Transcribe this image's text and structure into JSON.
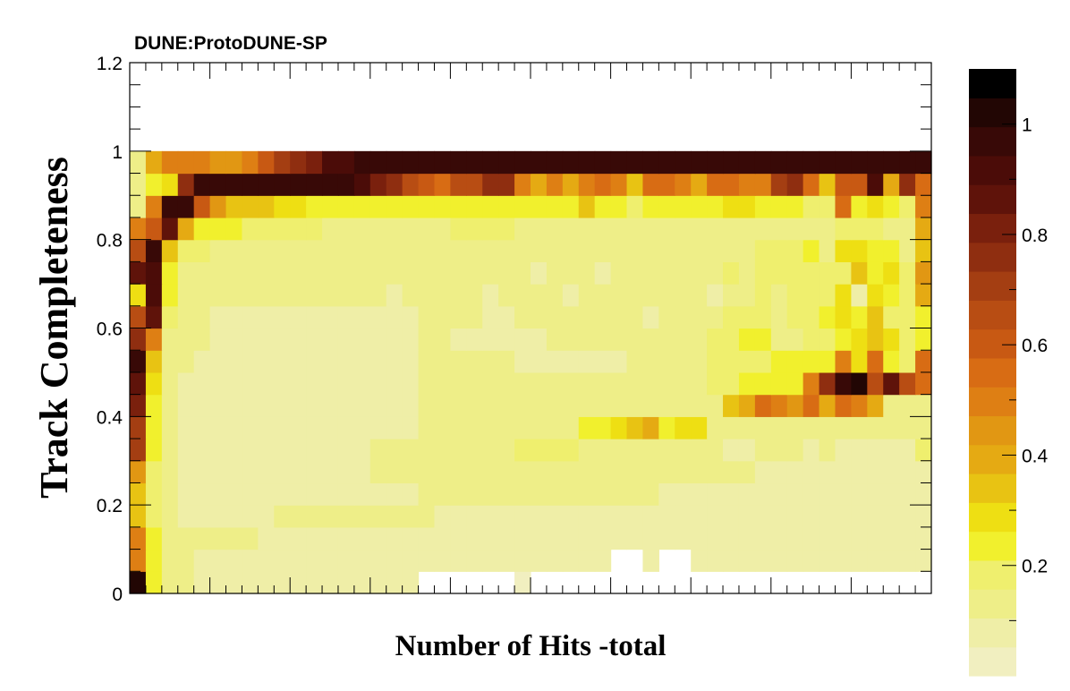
{
  "chart_data": {
    "type": "heatmap",
    "title": "DUNE:ProtoDUNE-SP",
    "xlabel": "Number of Hits -total",
    "ylabel": "Track Completeness",
    "xlim": [
      0,
      50
    ],
    "ylim": [
      0,
      1.2
    ],
    "y_ticks": [
      "0",
      "0.2",
      "0.4",
      "0.6",
      "0.8",
      "1",
      "1.2"
    ],
    "x_tick_labels_visible": false,
    "colorbar": {
      "range": [
        0,
        1.1
      ],
      "tick_labels": [
        "0.2",
        "0.4",
        "0.6",
        "0.8",
        "1"
      ],
      "levels": 20
    },
    "grid": false,
    "bins": {
      "nx": 50,
      "ny": 22,
      "y_bin_width": 0.05
    },
    "description_note": "",
    "z_rows": [
      [
        1.05,
        0.27,
        0.16,
        0.12,
        0.08,
        0.08,
        0.08,
        0.08,
        0.08,
        0.08,
        0.08,
        0.08,
        0.08,
        0.08,
        0.08,
        0.08,
        0.08,
        0.1,
        0,
        0,
        0,
        0,
        0,
        0,
        0.02,
        0,
        0,
        0,
        0,
        0,
        0,
        0,
        0,
        0,
        0,
        0,
        0,
        0,
        0,
        0,
        0,
        0,
        0,
        0,
        0,
        0,
        0,
        0,
        0,
        0
      ],
      [
        0.5,
        0.23,
        0.16,
        0.12,
        0.08,
        0.08,
        0.08,
        0.08,
        0.08,
        0.08,
        0.08,
        0.08,
        0.08,
        0.08,
        0.08,
        0.08,
        0.08,
        0.08,
        0.08,
        0.08,
        0.08,
        0.08,
        0.08,
        0.08,
        0.08,
        0.08,
        0.08,
        0.08,
        0.08,
        0.08,
        0,
        0,
        0.08,
        0,
        0,
        0.08,
        0.08,
        0.08,
        0.08,
        0.08,
        0.08,
        0.08,
        0.08,
        0.08,
        0.08,
        0.08,
        0.08,
        0.08,
        0.08,
        0.08
      ],
      [
        0.53,
        0.22,
        0.14,
        0.12,
        0.12,
        0.12,
        0.12,
        0.12,
        0.08,
        0.08,
        0.08,
        0.08,
        0.08,
        0.08,
        0.08,
        0.08,
        0.08,
        0.08,
        0.08,
        0.08,
        0.08,
        0.08,
        0.08,
        0.08,
        0.08,
        0.08,
        0.08,
        0.08,
        0.08,
        0.08,
        0.08,
        0.08,
        0.08,
        0.08,
        0.08,
        0.08,
        0.08,
        0.08,
        0.08,
        0.08,
        0.08,
        0.08,
        0.08,
        0.08,
        0.08,
        0.08,
        0.08,
        0.08,
        0.08,
        0.08
      ],
      [
        0.36,
        0.2,
        0.14,
        0.08,
        0.08,
        0.08,
        0.08,
        0.08,
        0.08,
        0.12,
        0.12,
        0.12,
        0.12,
        0.12,
        0.12,
        0.12,
        0.12,
        0.12,
        0.12,
        0.08,
        0.08,
        0.08,
        0.08,
        0.08,
        0.08,
        0.08,
        0.08,
        0.08,
        0.08,
        0.08,
        0.08,
        0.08,
        0.08,
        0.08,
        0.08,
        0.08,
        0.08,
        0.08,
        0.08,
        0.08,
        0.08,
        0.08,
        0.08,
        0.08,
        0.08,
        0.08,
        0.08,
        0.08,
        0.08,
        0.08
      ],
      [
        0.38,
        0.21,
        0.14,
        0.08,
        0.08,
        0.08,
        0.08,
        0.08,
        0.08,
        0.08,
        0.08,
        0.08,
        0.08,
        0.08,
        0.08,
        0.08,
        0.08,
        0.08,
        0.12,
        0.12,
        0.12,
        0.12,
        0.12,
        0.12,
        0.12,
        0.12,
        0.12,
        0.12,
        0.12,
        0.12,
        0.12,
        0.12,
        0.12,
        0.08,
        0.08,
        0.08,
        0.08,
        0.08,
        0.08,
        0.08,
        0.08,
        0.08,
        0.08,
        0.08,
        0.08,
        0.08,
        0.08,
        0.08,
        0.08,
        0.08
      ],
      [
        0.46,
        0.2,
        0.12,
        0.08,
        0.08,
        0.08,
        0.08,
        0.08,
        0.08,
        0.08,
        0.08,
        0.08,
        0.08,
        0.08,
        0.08,
        0.12,
        0.12,
        0.12,
        0.12,
        0.12,
        0.12,
        0.12,
        0.12,
        0.12,
        0.12,
        0.12,
        0.12,
        0.12,
        0.12,
        0.12,
        0.12,
        0.12,
        0.12,
        0.12,
        0.12,
        0.12,
        0.12,
        0.12,
        0.12,
        0.08,
        0.08,
        0.08,
        0.08,
        0.08,
        0.08,
        0.08,
        0.08,
        0.08,
        0.08,
        0.08
      ],
      [
        0.74,
        0.22,
        0.12,
        0.08,
        0.08,
        0.08,
        0.08,
        0.08,
        0.08,
        0.08,
        0.08,
        0.08,
        0.08,
        0.08,
        0.08,
        0.12,
        0.12,
        0.12,
        0.12,
        0.12,
        0.12,
        0.12,
        0.12,
        0.15,
        0.18,
        0.18,
        0.18,
        0.18,
        0.12,
        0.14,
        0.14,
        0.12,
        0.12,
        0.14,
        0.16,
        0.14,
        0.12,
        0.08,
        0.08,
        0.12,
        0.12,
        0.12,
        0.08,
        0.12,
        0.08,
        0.08,
        0.08,
        0.08,
        0.08,
        0.2
      ],
      [
        0.72,
        0.24,
        0.14,
        0.08,
        0.08,
        0.08,
        0.08,
        0.08,
        0.08,
        0.08,
        0.08,
        0.08,
        0.08,
        0.08,
        0.08,
        0.08,
        0.08,
        0.08,
        0.14,
        0.14,
        0.14,
        0.14,
        0.14,
        0.14,
        0.14,
        0.14,
        0.14,
        0.14,
        0.22,
        0.26,
        0.32,
        0.38,
        0.4,
        0.22,
        0.28,
        0.28,
        0.14,
        0.14,
        0.14,
        0.14,
        0.14,
        0.16,
        0.14,
        0.14,
        0.16,
        0.14,
        0.14,
        0.14,
        0.14,
        0.14
      ],
      [
        0.85,
        0.26,
        0.16,
        0.08,
        0.08,
        0.08,
        0.08,
        0.08,
        0.08,
        0.08,
        0.08,
        0.08,
        0.08,
        0.08,
        0.08,
        0.08,
        0.08,
        0.08,
        0.12,
        0.12,
        0.12,
        0.12,
        0.12,
        0.12,
        0.12,
        0.12,
        0.12,
        0.12,
        0.12,
        0.12,
        0.12,
        0.12,
        0.12,
        0.12,
        0.12,
        0.12,
        0.16,
        0.35,
        0.4,
        0.6,
        0.5,
        0.45,
        0.55,
        0.4,
        0.6,
        0.5,
        0.4,
        0.16,
        0.14,
        0.16
      ],
      [
        0.92,
        0.28,
        0.16,
        0.08,
        0.08,
        0.08,
        0.08,
        0.08,
        0.08,
        0.08,
        0.08,
        0.08,
        0.08,
        0.08,
        0.08,
        0.08,
        0.08,
        0.08,
        0.12,
        0.12,
        0.12,
        0.12,
        0.12,
        0.12,
        0.12,
        0.12,
        0.12,
        0.12,
        0.12,
        0.12,
        0.12,
        0.12,
        0.12,
        0.14,
        0.14,
        0.14,
        0.18,
        0.2,
        0.22,
        0.24,
        0.24,
        0.26,
        0.5,
        0.78,
        1.0,
        1.08,
        0.7,
        0.9,
        0.7,
        0.6
      ],
      [
        1.02,
        0.34,
        0.14,
        0.12,
        0.08,
        0.08,
        0.08,
        0.08,
        0.08,
        0.08,
        0.08,
        0.08,
        0.08,
        0.08,
        0.08,
        0.08,
        0.08,
        0.08,
        0.12,
        0.12,
        0.12,
        0.12,
        0.12,
        0.12,
        0.08,
        0.08,
        0.08,
        0.08,
        0.08,
        0.08,
        0.08,
        0.12,
        0.12,
        0.14,
        0.16,
        0.16,
        0.18,
        0.2,
        0.18,
        0.2,
        0.22,
        0.26,
        0.22,
        0.24,
        0.5,
        0.3,
        0.6,
        0.24,
        0.2,
        0.6
      ],
      [
        0.8,
        0.5,
        0.16,
        0.12,
        0.12,
        0.08,
        0.08,
        0.08,
        0.08,
        0.08,
        0.08,
        0.08,
        0.08,
        0.08,
        0.08,
        0.08,
        0.08,
        0.08,
        0.12,
        0.12,
        0.08,
        0.08,
        0.08,
        0.08,
        0.08,
        0.08,
        0.12,
        0.12,
        0.12,
        0.12,
        0.12,
        0.12,
        0.12,
        0.14,
        0.14,
        0.14,
        0.2,
        0.2,
        0.22,
        0.22,
        0.16,
        0.16,
        0.18,
        0.2,
        0.22,
        0.3,
        0.34,
        0.3,
        0.2,
        0.22
      ],
      [
        0.66,
        0.9,
        0.18,
        0.12,
        0.12,
        0.08,
        0.08,
        0.08,
        0.08,
        0.08,
        0.08,
        0.08,
        0.08,
        0.08,
        0.08,
        0.08,
        0.08,
        0.08,
        0.12,
        0.12,
        0.12,
        0.12,
        0.08,
        0.08,
        0.12,
        0.12,
        0.12,
        0.12,
        0.12,
        0.12,
        0.12,
        0.12,
        0.08,
        0.14,
        0.14,
        0.14,
        0.16,
        0.18,
        0.18,
        0.2,
        0.16,
        0.18,
        0.2,
        0.22,
        0.3,
        0.24,
        0.36,
        0.2,
        0.18,
        0.24
      ],
      [
        0.3,
        0.98,
        0.22,
        0.14,
        0.12,
        0.12,
        0.12,
        0.12,
        0.12,
        0.12,
        0.12,
        0.12,
        0.12,
        0.12,
        0.12,
        0.12,
        0.08,
        0.12,
        0.12,
        0.12,
        0.12,
        0.12,
        0.08,
        0.12,
        0.12,
        0.12,
        0.12,
        0.08,
        0.12,
        0.12,
        0.12,
        0.12,
        0.16,
        0.16,
        0.14,
        0.14,
        0.08,
        0.14,
        0.14,
        0.18,
        0.16,
        0.18,
        0.18,
        0.18,
        0.28,
        0.08,
        0.3,
        0.22,
        0.18,
        0.4
      ],
      [
        0.9,
        0.94,
        0.26,
        0.16,
        0.14,
        0.14,
        0.12,
        0.12,
        0.12,
        0.12,
        0.14,
        0.14,
        0.12,
        0.14,
        0.12,
        0.14,
        0.14,
        0.14,
        0.14,
        0.14,
        0.14,
        0.14,
        0.12,
        0.12,
        0.14,
        0.08,
        0.14,
        0.12,
        0.14,
        0.08,
        0.14,
        0.12,
        0.14,
        0.14,
        0.14,
        0.14,
        0.16,
        0.18,
        0.16,
        0.18,
        0.2,
        0.2,
        0.2,
        0.18,
        0.18,
        0.36,
        0.24,
        0.28,
        0.2,
        0.46
      ],
      [
        0.7,
        1.0,
        0.34,
        0.2,
        0.18,
        0.16,
        0.16,
        0.14,
        0.14,
        0.14,
        0.14,
        0.14,
        0.14,
        0.14,
        0.14,
        0.14,
        0.14,
        0.14,
        0.14,
        0.14,
        0.14,
        0.14,
        0.14,
        0.14,
        0.14,
        0.14,
        0.14,
        0.14,
        0.14,
        0.14,
        0.14,
        0.14,
        0.16,
        0.16,
        0.16,
        0.16,
        0.12,
        0.16,
        0.16,
        0.18,
        0.2,
        0.2,
        0.22,
        0.16,
        0.3,
        0.3,
        0.24,
        0.22,
        0.12,
        0.36
      ],
      [
        0.5,
        0.62,
        0.9,
        0.42,
        0.24,
        0.22,
        0.22,
        0.18,
        0.2,
        0.2,
        0.18,
        0.18,
        0.16,
        0.16,
        0.16,
        0.16,
        0.16,
        0.16,
        0.16,
        0.16,
        0.18,
        0.18,
        0.18,
        0.18,
        0.14,
        0.14,
        0.14,
        0.16,
        0.16,
        0.16,
        0.14,
        0.14,
        0.14,
        0.16,
        0.16,
        0.16,
        0.16,
        0.14,
        0.16,
        0.16,
        0.14,
        0.16,
        0.16,
        0.16,
        0.2,
        0.18,
        0.2,
        0.16,
        0.14,
        0.4
      ],
      [
        0.14,
        0.5,
        1.02,
        1.04,
        0.62,
        0.48,
        0.36,
        0.38,
        0.34,
        0.32,
        0.32,
        0.26,
        0.22,
        0.24,
        0.24,
        0.24,
        0.24,
        0.24,
        0.24,
        0.22,
        0.24,
        0.24,
        0.22,
        0.22,
        0.22,
        0.22,
        0.22,
        0.22,
        0.34,
        0.26,
        0.22,
        0.2,
        0.22,
        0.22,
        0.24,
        0.22,
        0.26,
        0.3,
        0.3,
        0.24,
        0.22,
        0.22,
        0.18,
        0.2,
        0.6,
        0.22,
        0.3,
        0.22,
        0.18,
        0.5
      ],
      [
        0.12,
        0.22,
        0.32,
        0.8,
        1.02,
        1.02,
        1.02,
        1.02,
        1.02,
        1.02,
        1.02,
        1.02,
        1.02,
        1.02,
        0.94,
        0.86,
        0.78,
        0.68,
        0.62,
        0.6,
        0.66,
        0.7,
        0.8,
        0.8,
        0.52,
        0.42,
        0.52,
        0.4,
        0.52,
        0.6,
        0.52,
        0.38,
        0.6,
        0.6,
        0.5,
        0.42,
        0.6,
        0.6,
        0.5,
        0.54,
        0.72,
        0.8,
        0.6,
        0.36,
        0.64,
        0.64,
        0.98,
        0.4,
        0.8,
        0.6
      ],
      [
        0.12,
        0.42,
        0.5,
        0.5,
        0.5,
        0.48,
        0.48,
        0.54,
        0.62,
        0.74,
        0.8,
        0.86,
        0.94,
        0.96,
        1.02,
        1.02,
        1.02,
        1.02,
        1.02,
        1.02,
        1.02,
        1.02,
        1.02,
        1.02,
        1.02,
        1.02,
        1.02,
        1.02,
        1.02,
        1.02,
        1.02,
        1.02,
        1.02,
        1.02,
        1.02,
        1.02,
        1.02,
        1.02,
        1.02,
        1.02,
        1.02,
        1.02,
        1.02,
        1.02,
        1.02,
        1.02,
        1.02,
        1.02,
        1.02,
        1.02
      ],
      [
        0,
        0,
        0,
        0,
        0,
        0,
        0,
        0,
        0,
        0,
        0,
        0,
        0,
        0,
        0,
        0,
        0,
        0,
        0,
        0,
        0,
        0,
        0,
        0,
        0,
        0,
        0,
        0,
        0,
        0,
        0,
        0,
        0,
        0,
        0,
        0,
        0,
        0,
        0,
        0,
        0,
        0,
        0,
        0,
        0,
        0,
        0,
        0,
        0,
        0
      ],
      [
        0,
        0,
        0,
        0,
        0,
        0,
        0,
        0,
        0,
        0,
        0,
        0,
        0,
        0,
        0,
        0,
        0,
        0,
        0,
        0,
        0,
        0,
        0,
        0,
        0,
        0,
        0,
        0,
        0,
        0,
        0,
        0,
        0,
        0,
        0,
        0,
        0,
        0,
        0,
        0,
        0,
        0,
        0,
        0,
        0,
        0,
        0,
        0,
        0,
        0
      ]
    ]
  },
  "palette": [
    "#f1efc0",
    "#efeea7",
    "#eeee88",
    "#efef6e",
    "#f1f02d",
    "#eedf13",
    "#e8c313",
    "#e5aa13",
    "#e19713",
    "#de7f14",
    "#d86c14",
    "#c85913",
    "#b84d13",
    "#a43e12",
    "#8f2e10",
    "#7a200d",
    "#5f130a",
    "#4b0c08",
    "#380907",
    "#220604",
    "#000000"
  ]
}
